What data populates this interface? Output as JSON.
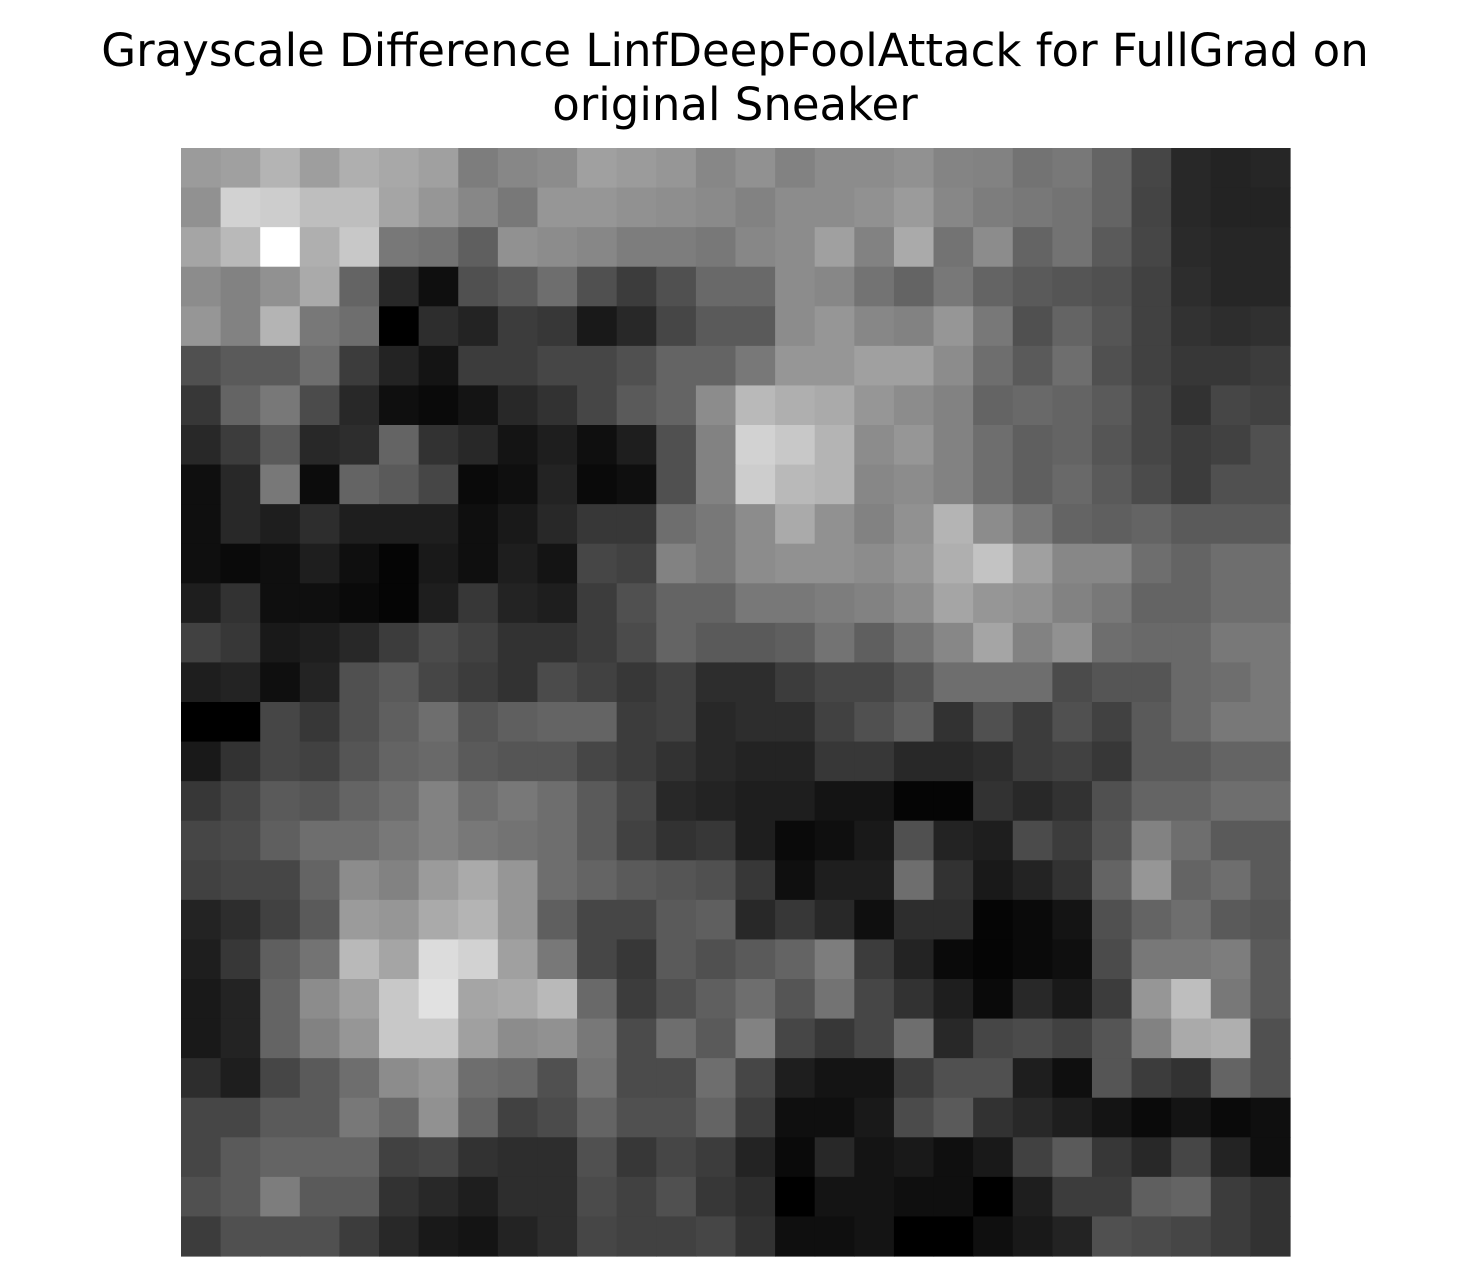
{
  "chart_data": {
    "type": "heatmap",
    "title": "Grayscale Difference LinfDeepFoolAttack for FullGrad on original Sneaker",
    "title_lines": [
      "Grayscale Difference LinfDeepFoolAttack for FullGrad on",
      "original Sneaker"
    ],
    "colormap": "gray",
    "axes_visible": false,
    "grid": false,
    "rows": 28,
    "cols": 28,
    "values": [
      [
        155,
        160,
        180,
        158,
        175,
        168,
        160,
        125,
        135,
        140,
        160,
        155,
        150,
        135,
        145,
        130,
        140,
        140,
        145,
        132,
        130,
        115,
        120,
        100,
        70,
        40,
        35,
        38
      ],
      [
        145,
        210,
        205,
        190,
        190,
        165,
        150,
        135,
        120,
        150,
        150,
        145,
        142,
        138,
        130,
        140,
        140,
        145,
        155,
        135,
        125,
        120,
        115,
        100,
        68,
        40,
        35,
        35
      ],
      [
        165,
        185,
        255,
        175,
        200,
        120,
        115,
        95,
        145,
        140,
        135,
        125,
        125,
        120,
        135,
        140,
        160,
        130,
        170,
        115,
        140,
        100,
        115,
        90,
        70,
        42,
        38,
        38
      ],
      [
        140,
        130,
        145,
        170,
        100,
        40,
        15,
        80,
        90,
        110,
        80,
        60,
        80,
        105,
        105,
        140,
        135,
        115,
        100,
        120,
        100,
        90,
        85,
        80,
        65,
        45,
        38,
        38
      ],
      [
        150,
        130,
        180,
        120,
        110,
        0,
        45,
        35,
        60,
        55,
        25,
        40,
        70,
        90,
        90,
        140,
        150,
        135,
        130,
        150,
        120,
        80,
        100,
        85,
        65,
        50,
        45,
        48
      ],
      [
        80,
        90,
        90,
        110,
        60,
        35,
        20,
        60,
        60,
        70,
        70,
        80,
        100,
        100,
        120,
        150,
        150,
        160,
        160,
        140,
        110,
        90,
        110,
        80,
        65,
        55,
        55,
        60
      ],
      [
        55,
        100,
        120,
        75,
        40,
        15,
        10,
        20,
        40,
        50,
        70,
        90,
        100,
        140,
        185,
        175,
        170,
        150,
        140,
        130,
        100,
        105,
        100,
        90,
        70,
        50,
        70,
        65
      ],
      [
        40,
        60,
        90,
        40,
        45,
        100,
        50,
        40,
        20,
        30,
        15,
        30,
        80,
        130,
        210,
        200,
        180,
        140,
        150,
        130,
        110,
        95,
        100,
        85,
        70,
        60,
        65,
        80
      ],
      [
        15,
        40,
        120,
        12,
        100,
        90,
        70,
        10,
        15,
        35,
        10,
        15,
        80,
        130,
        205,
        185,
        180,
        135,
        140,
        130,
        110,
        95,
        105,
        90,
        75,
        60,
        80,
        80
      ],
      [
        15,
        40,
        30,
        45,
        30,
        30,
        30,
        15,
        25,
        40,
        55,
        55,
        110,
        120,
        140,
        170,
        145,
        130,
        145,
        180,
        140,
        120,
        100,
        95,
        100,
        90,
        90,
        90
      ],
      [
        15,
        10,
        15,
        30,
        15,
        5,
        25,
        15,
        30,
        20,
        70,
        65,
        130,
        120,
        140,
        145,
        145,
        140,
        150,
        175,
        195,
        160,
        135,
        135,
        110,
        100,
        110,
        110
      ],
      [
        30,
        50,
        15,
        15,
        10,
        5,
        30,
        55,
        35,
        30,
        60,
        80,
        100,
        100,
        120,
        120,
        125,
        130,
        140,
        165,
        150,
        145,
        130,
        120,
        100,
        100,
        110,
        110
      ],
      [
        65,
        55,
        25,
        30,
        40,
        60,
        75,
        65,
        50,
        50,
        60,
        75,
        100,
        90,
        90,
        95,
        115,
        95,
        115,
        135,
        165,
        130,
        145,
        110,
        105,
        105,
        120,
        120
      ],
      [
        30,
        35,
        15,
        35,
        80,
        90,
        70,
        60,
        50,
        75,
        65,
        55,
        65,
        45,
        45,
        60,
        70,
        70,
        85,
        110,
        110,
        110,
        75,
        85,
        85,
        105,
        110,
        120
      ],
      [
        0,
        0,
        70,
        55,
        80,
        95,
        110,
        85,
        95,
        100,
        100,
        60,
        65,
        40,
        45,
        45,
        65,
        80,
        95,
        50,
        80,
        60,
        80,
        65,
        90,
        105,
        120,
        120
      ],
      [
        25,
        50,
        70,
        65,
        85,
        100,
        105,
        90,
        85,
        85,
        70,
        60,
        50,
        40,
        35,
        35,
        55,
        55,
        40,
        40,
        45,
        60,
        65,
        55,
        90,
        90,
        100,
        100
      ],
      [
        55,
        70,
        90,
        85,
        100,
        110,
        130,
        110,
        120,
        110,
        90,
        70,
        40,
        35,
        30,
        30,
        20,
        20,
        5,
        5,
        50,
        40,
        50,
        80,
        100,
        100,
        110,
        110
      ],
      [
        70,
        75,
        95,
        110,
        110,
        120,
        130,
        120,
        115,
        110,
        90,
        65,
        50,
        55,
        30,
        10,
        15,
        25,
        80,
        35,
        30,
        75,
        60,
        85,
        130,
        110,
        90,
        90
      ],
      [
        65,
        70,
        70,
        100,
        140,
        130,
        155,
        170,
        150,
        110,
        100,
        90,
        85,
        80,
        55,
        15,
        30,
        30,
        110,
        50,
        25,
        35,
        50,
        100,
        150,
        100,
        110,
        90
      ],
      [
        35,
        45,
        65,
        90,
        155,
        150,
        170,
        180,
        150,
        95,
        70,
        70,
        90,
        95,
        40,
        55,
        40,
        15,
        45,
        45,
        5,
        10,
        20,
        80,
        100,
        110,
        90,
        85
      ],
      [
        30,
        55,
        95,
        115,
        185,
        165,
        220,
        210,
        160,
        120,
        70,
        55,
        90,
        80,
        90,
        100,
        125,
        60,
        35,
        10,
        5,
        10,
        15,
        75,
        120,
        120,
        125,
        90
      ],
      [
        25,
        35,
        100,
        140,
        160,
        200,
        225,
        165,
        170,
        185,
        105,
        60,
        80,
        95,
        110,
        85,
        115,
        70,
        50,
        30,
        10,
        40,
        25,
        60,
        150,
        190,
        120,
        90
      ],
      [
        25,
        35,
        100,
        130,
        150,
        200,
        200,
        160,
        140,
        145,
        120,
        75,
        110,
        90,
        130,
        70,
        55,
        70,
        110,
        40,
        70,
        75,
        65,
        85,
        130,
        170,
        175,
        80
      ],
      [
        45,
        30,
        70,
        90,
        110,
        140,
        150,
        110,
        105,
        80,
        115,
        75,
        75,
        110,
        70,
        30,
        20,
        20,
        60,
        80,
        80,
        30,
        15,
        85,
        60,
        50,
        100,
        80
      ],
      [
        70,
        70,
        90,
        90,
        120,
        105,
        145,
        100,
        65,
        75,
        100,
        80,
        80,
        100,
        60,
        15,
        15,
        25,
        75,
        90,
        50,
        40,
        30,
        20,
        10,
        20,
        10,
        15
      ],
      [
        70,
        90,
        100,
        100,
        100,
        65,
        70,
        50,
        45,
        45,
        80,
        55,
        70,
        60,
        35,
        10,
        40,
        20,
        25,
        15,
        25,
        65,
        90,
        55,
        40,
        70,
        35,
        15
      ],
      [
        80,
        90,
        125,
        90,
        90,
        50,
        40,
        30,
        45,
        45,
        75,
        65,
        80,
        55,
        45,
        0,
        20,
        20,
        15,
        15,
        0,
        30,
        60,
        60,
        95,
        100,
        60,
        50
      ],
      [
        60,
        80,
        80,
        80,
        60,
        40,
        25,
        20,
        35,
        45,
        70,
        65,
        65,
        70,
        50,
        15,
        15,
        20,
        0,
        0,
        15,
        25,
        35,
        80,
        75,
        70,
        60,
        50
      ]
    ]
  }
}
